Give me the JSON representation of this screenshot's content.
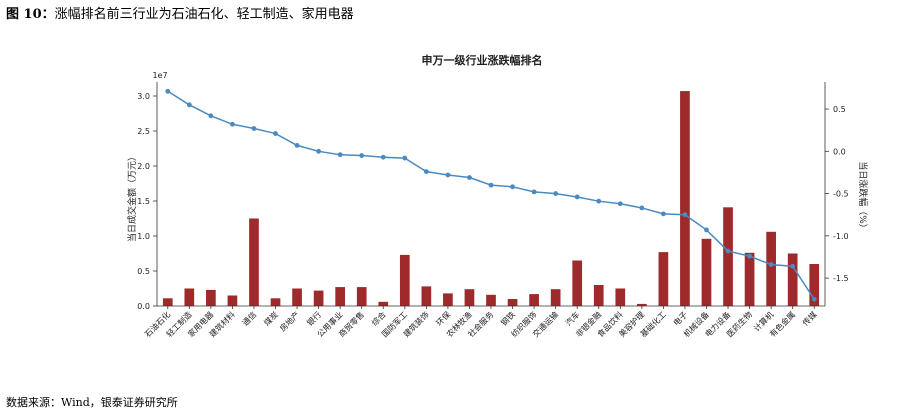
{
  "header": {
    "figure_label": "图 10：",
    "caption": "涨幅排名前三行业为石油石化、轻工制造、家用电器"
  },
  "source": "数据来源：Wind，银泰证券研究所",
  "colors": {
    "bar": "#9e2a2b",
    "line": "#4a8ac0"
  },
  "chart_data": {
    "type": "bar",
    "title": "申万一级行业涨跌幅排名",
    "categories": [
      "石油石化",
      "轻工制造",
      "家用电器",
      "建筑材料",
      "通信",
      "煤炭",
      "房地产",
      "银行",
      "公用事业",
      "商贸零售",
      "综合",
      "国防军工",
      "建筑装饰",
      "环保",
      "农林牧渔",
      "社会服务",
      "钢铁",
      "纺织服饰",
      "交通运输",
      "汽车",
      "非银金融",
      "食品饮料",
      "美容护理",
      "基础化工",
      "电子",
      "机械设备",
      "电力设备",
      "医药生物",
      "计算机",
      "有色金属",
      "传媒"
    ],
    "scale_label": "1e7",
    "ylabel_left": "当日成交金额（万元）",
    "ylabel_right": "当日涨跌幅（%）",
    "ylim_left": [
      0,
      3.2
    ],
    "ylim_right": [
      -1.83,
      0.82
    ],
    "yticks_left": [
      "0.0",
      "0.5",
      "1.0",
      "1.5",
      "2.0",
      "2.5",
      "3.0"
    ],
    "yticks_left_values": [
      0,
      0.5,
      1.0,
      1.5,
      2.0,
      2.5,
      3.0
    ],
    "yticks_right": [
      "-1.5",
      "-1.0",
      "-0.5",
      "0.0",
      "0.5"
    ],
    "yticks_right_values": [
      -1.5,
      -1.0,
      -0.5,
      0.0,
      0.5
    ],
    "series": [
      {
        "name": "当日成交金额（万元）",
        "kind": "bar",
        "axis": "left",
        "values": [
          0.11,
          0.25,
          0.23,
          0.15,
          1.25,
          0.11,
          0.25,
          0.22,
          0.27,
          0.27,
          0.06,
          0.73,
          0.28,
          0.18,
          0.24,
          0.16,
          0.1,
          0.17,
          0.24,
          0.65,
          0.3,
          0.25,
          0.03,
          0.77,
          3.07,
          0.96,
          1.41,
          0.76,
          1.06,
          0.75,
          0.6
        ]
      },
      {
        "name": "当日涨跌幅（%）",
        "kind": "line",
        "axis": "right",
        "values": [
          0.71,
          0.55,
          0.42,
          0.32,
          0.27,
          0.21,
          0.07,
          0.0,
          -0.04,
          -0.05,
          -0.07,
          -0.08,
          -0.24,
          -0.28,
          -0.31,
          -0.4,
          -0.42,
          -0.48,
          -0.5,
          -0.54,
          -0.59,
          -0.62,
          -0.67,
          -0.74,
          -0.75,
          -0.93,
          -1.18,
          -1.24,
          -1.34,
          -1.36,
          -1.75
        ]
      }
    ]
  }
}
